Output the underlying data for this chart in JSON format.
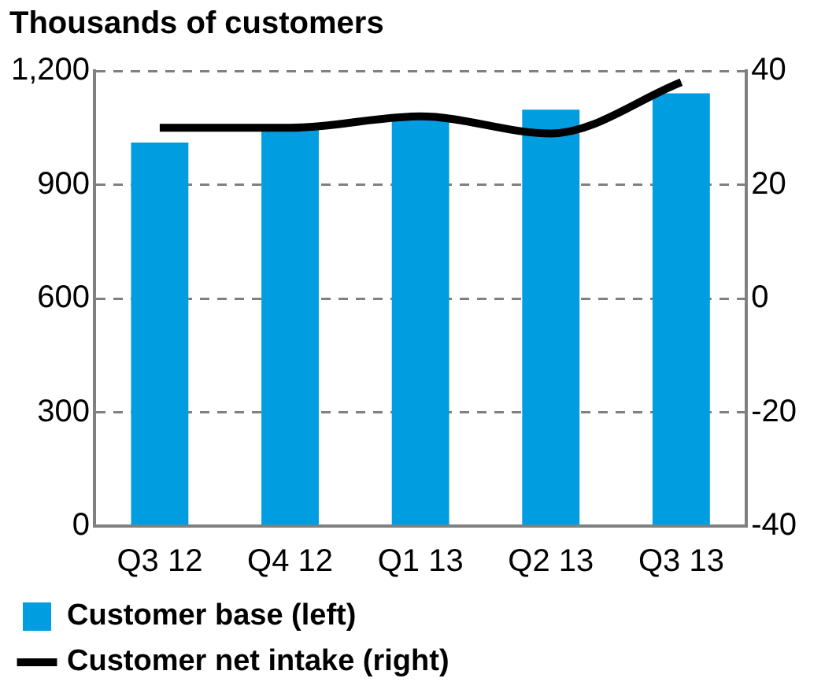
{
  "chart_data": {
    "type": "bar",
    "title": "Thousands of customers",
    "categories": [
      "Q3 12",
      "Q4 12",
      "Q1 13",
      "Q2 13",
      "Q3 13"
    ],
    "series": [
      {
        "name": "Customer base (left)",
        "color": "#009ee0",
        "values": [
          1011,
          1045,
          1072,
          1098,
          1141
        ]
      },
      {
        "name": "Customer net intake (right)",
        "type": "line",
        "axis": "y2",
        "color": "#000000",
        "values": [
          30,
          30,
          32,
          29,
          38
        ]
      }
    ],
    "ylim": [
      0,
      1200
    ],
    "yticks": [
      0,
      300,
      600,
      900,
      {
        "value": 1200,
        "label": "1,200"
      }
    ],
    "y2lim": [
      -40,
      40
    ],
    "y2ticks": [
      -40,
      -20,
      0,
      20,
      40
    ],
    "grid": "y",
    "legend": "bottom",
    "marker": "none",
    "line_style": "solid"
  }
}
